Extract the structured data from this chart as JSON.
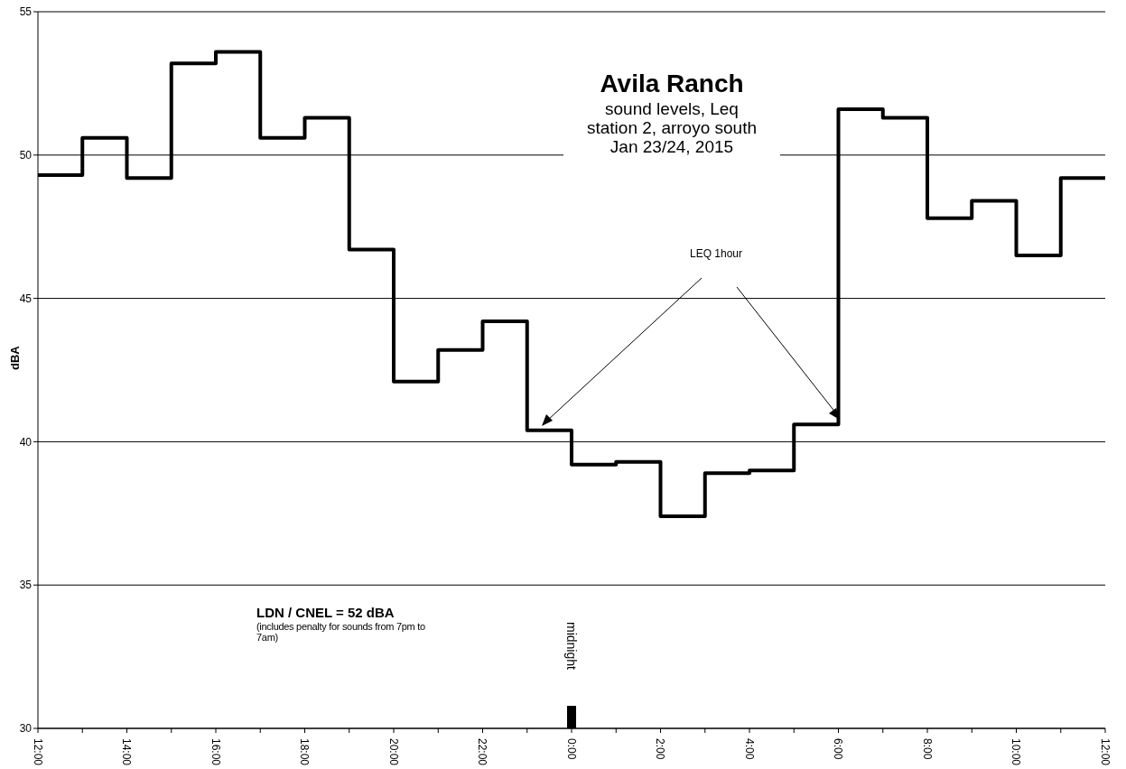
{
  "chart_data": {
    "type": "step",
    "title": "Avila Ranch",
    "subtitle": "sound levels, Leq\nstation 2, arroyo south\nJan 23/24, 2015",
    "ylabel": "dBA",
    "x": [
      "2015-01-23T12:00",
      "2015-01-23T13:00",
      "2015-01-23T14:00",
      "2015-01-23T15:00",
      "2015-01-23T16:00",
      "2015-01-23T17:00",
      "2015-01-23T18:00",
      "2015-01-23T19:00",
      "2015-01-23T20:00",
      "2015-01-23T21:00",
      "2015-01-23T22:00",
      "2015-01-23T23:00",
      "2015-01-24T00:00",
      "2015-01-24T01:00",
      "2015-01-24T02:00",
      "2015-01-24T03:00",
      "2015-01-24T04:00",
      "2015-01-24T05:00",
      "2015-01-24T06:00",
      "2015-01-24T07:00",
      "2015-01-24T08:00",
      "2015-01-24T09:00",
      "2015-01-24T10:00",
      "2015-01-24T11:00",
      "2015-01-24T12:00"
    ],
    "values": [
      49.3,
      50.6,
      49.2,
      53.2,
      53.6,
      50.6,
      51.3,
      46.7,
      42.1,
      43.2,
      44.2,
      40.4,
      39.2,
      39.3,
      37.4,
      38.9,
      39.0,
      40.6,
      51.6,
      51.3,
      47.8,
      48.4,
      46.5,
      49.2,
      49.2
    ],
    "color": "#000000",
    "xlim": [
      "2015-01-23T12:00",
      "2015-01-24T12:00"
    ],
    "xticks": [
      {
        "value": "2015-01-23T12:00",
        "label": "12:00"
      },
      {
        "value": "2015-01-23T13:00",
        "label": null
      },
      {
        "value": "2015-01-23T14:00",
        "label": "14:00"
      },
      {
        "value": "2015-01-23T15:00",
        "label": null
      },
      {
        "value": "2015-01-23T16:00",
        "label": "16:00"
      },
      {
        "value": "2015-01-23T17:00",
        "label": null
      },
      {
        "value": "2015-01-23T18:00",
        "label": "18:00"
      },
      {
        "value": "2015-01-23T19:00",
        "label": null
      },
      {
        "value": "2015-01-23T20:00",
        "label": "20:00"
      },
      {
        "value": "2015-01-23T21:00",
        "label": null
      },
      {
        "value": "2015-01-23T22:00",
        "label": "22:00"
      },
      {
        "value": "2015-01-23T23:00",
        "label": null
      },
      {
        "value": "2015-01-24T00:00",
        "label": "0:00"
      },
      {
        "value": "2015-01-24T01:00",
        "label": null
      },
      {
        "value": "2015-01-24T02:00",
        "label": "2:00"
      },
      {
        "value": "2015-01-24T03:00",
        "label": null
      },
      {
        "value": "2015-01-24T04:00",
        "label": "4:00"
      },
      {
        "value": "2015-01-24T05:00",
        "label": null
      },
      {
        "value": "2015-01-24T06:00",
        "label": "6:00"
      },
      {
        "value": "2015-01-24T07:00",
        "label": null
      },
      {
        "value": "2015-01-24T08:00",
        "label": "8:00"
      },
      {
        "value": "2015-01-24T09:00",
        "label": null
      },
      {
        "value": "2015-01-24T10:00",
        "label": "10:00"
      },
      {
        "value": "2015-01-24T11:00",
        "label": null
      },
      {
        "value": "2015-01-24T12:00",
        "label": "12:00"
      }
    ],
    "ylim": [
      30,
      55
    ],
    "yticks": [
      30,
      35,
      40,
      45,
      50,
      55
    ],
    "grid": "y",
    "annotations": [
      "LEQ 1hour",
      "LDN / CNEL = 52 dBA",
      "(includes penalty for sounds from 7pm to 7am)",
      "midnight"
    ]
  }
}
